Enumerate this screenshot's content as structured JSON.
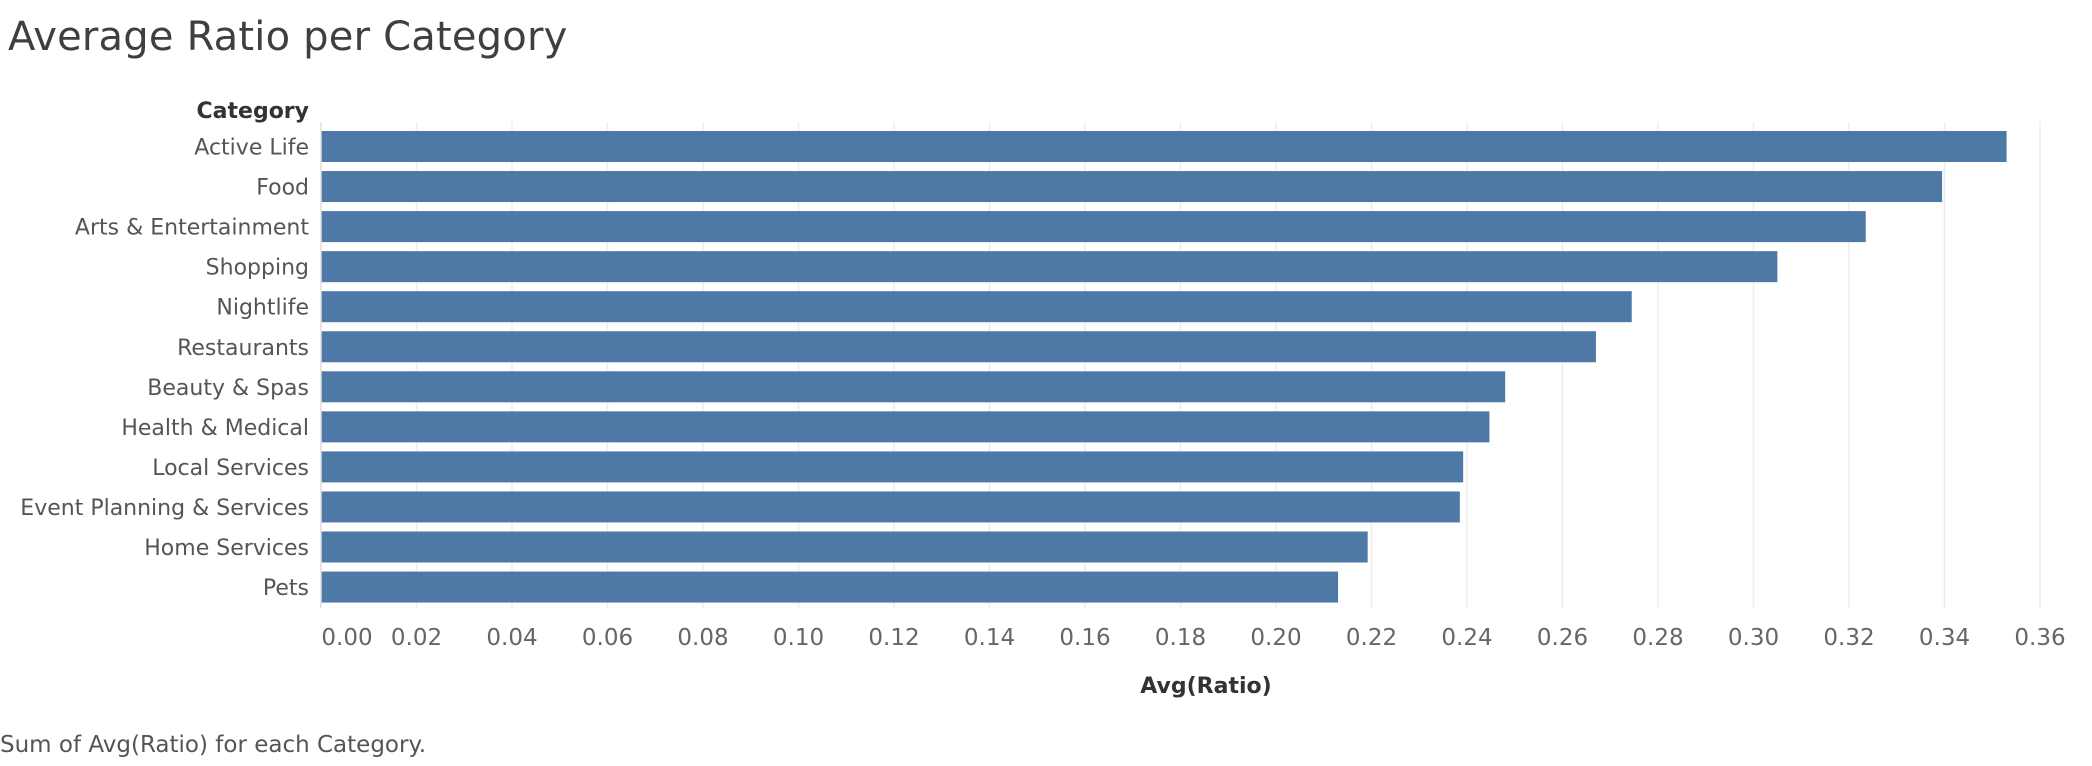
{
  "chart_data": {
    "type": "bar",
    "orientation": "horizontal",
    "title": "Average Ratio per Category",
    "ylabel": "Category",
    "xlabel": "Avg(Ratio)",
    "categories": [
      "Active Life",
      "Food",
      "Arts & Entertainment",
      "Shopping",
      "Nightlife",
      "Restaurants",
      "Beauty & Spas",
      "Health & Medical",
      "Local Services",
      "Event Planning & Services",
      "Home Services",
      "Pets"
    ],
    "values": [
      0.353,
      0.3395,
      0.3235,
      0.305,
      0.2745,
      0.267,
      0.248,
      0.2447,
      0.2392,
      0.2385,
      0.2192,
      0.213
    ],
    "xlim": [
      0,
      0.366
    ],
    "x_ticks": [
      "0.00",
      "0.02",
      "0.04",
      "0.06",
      "0.08",
      "0.10",
      "0.12",
      "0.14",
      "0.16",
      "0.18",
      "0.20",
      "0.22",
      "0.24",
      "0.26",
      "0.28",
      "0.30",
      "0.32",
      "0.34",
      "0.36"
    ],
    "grid": "vertical",
    "bar_color": "#4e79a7"
  },
  "footer": "Sum of Avg(Ratio) for each Category."
}
